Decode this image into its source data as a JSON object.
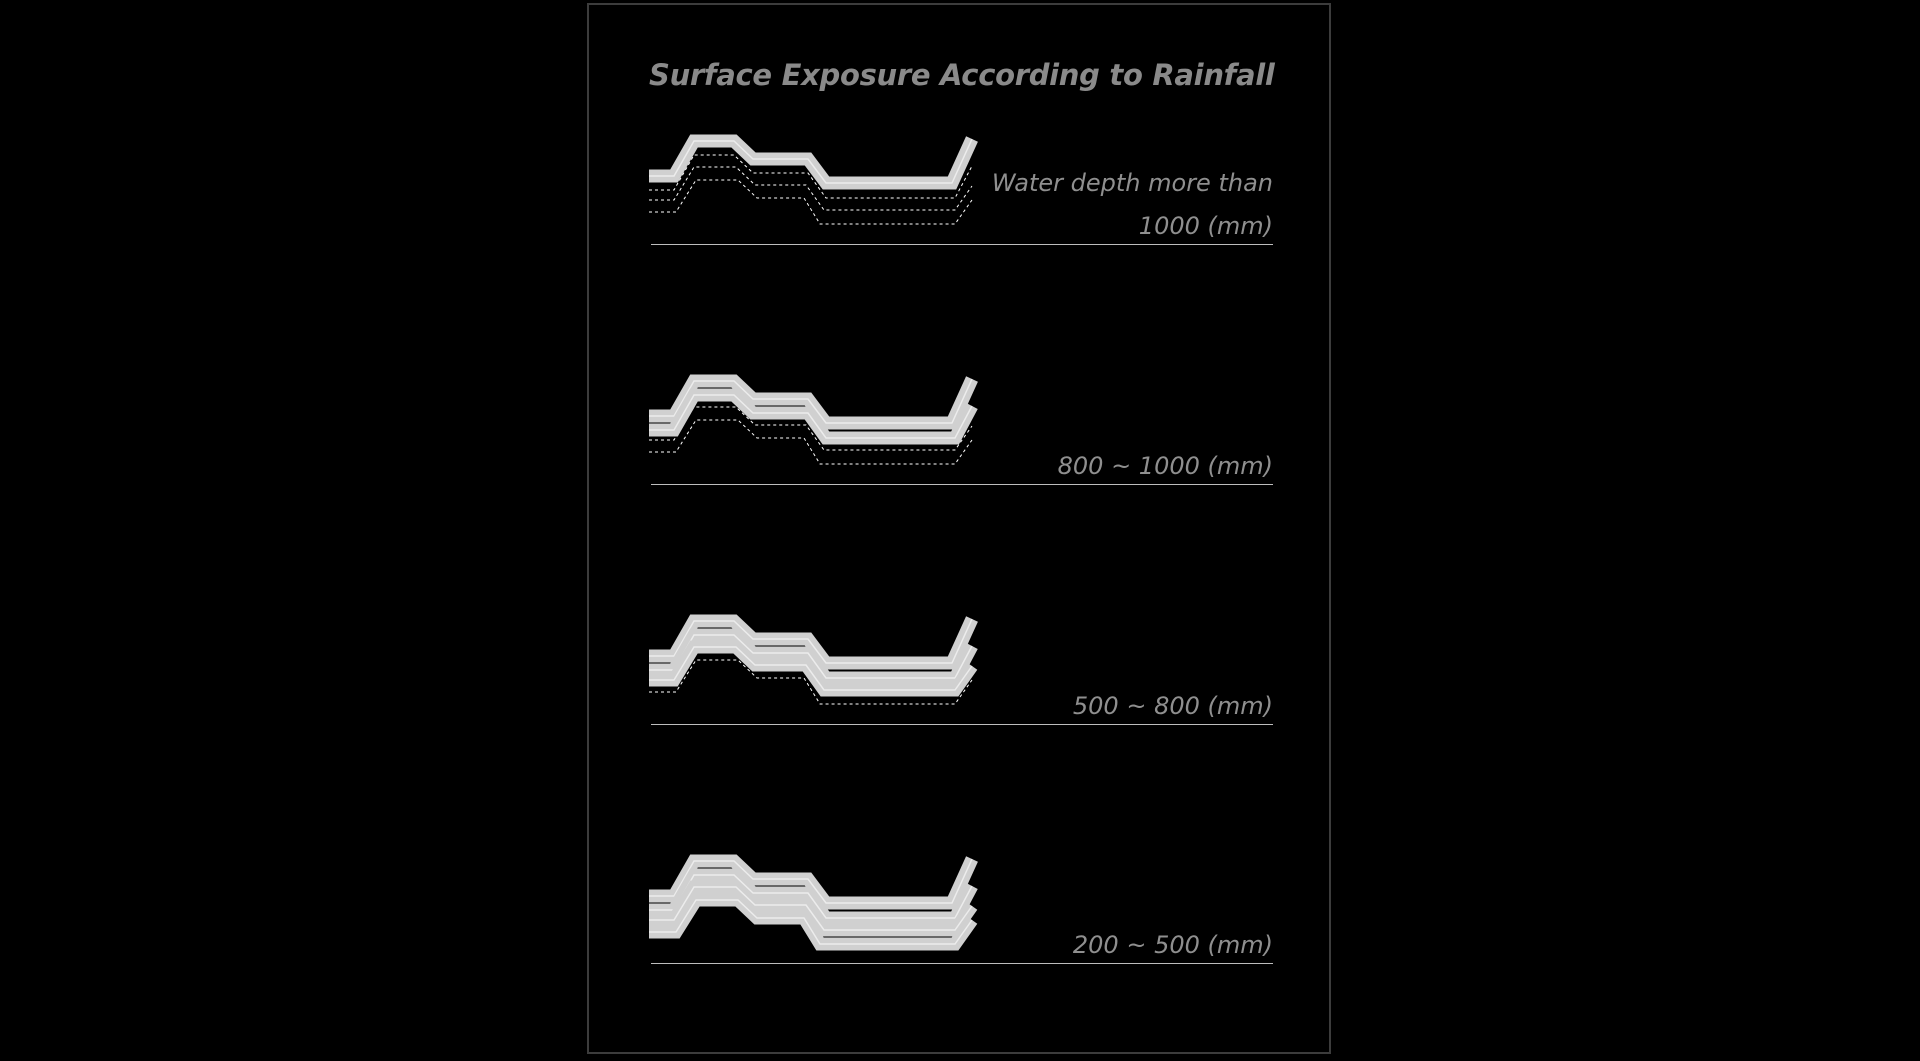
{
  "title": "Surface Exposure According to Rainfall",
  "colors": {
    "background": "#000000",
    "frame": "#3c3c3c",
    "surface": "#d0d0d0",
    "text": "#8a8a8a"
  },
  "rows": [
    {
      "label": "Water depth more than",
      "label2": "1000 (mm)",
      "exposed_layers": 1
    },
    {
      "label": "800 ~ 1000 (mm)",
      "exposed_layers": 2
    },
    {
      "label": "500 ~ 800 (mm)",
      "exposed_layers": 3
    },
    {
      "label": "200 ~ 500 (mm)",
      "exposed_layers": 4
    }
  ]
}
